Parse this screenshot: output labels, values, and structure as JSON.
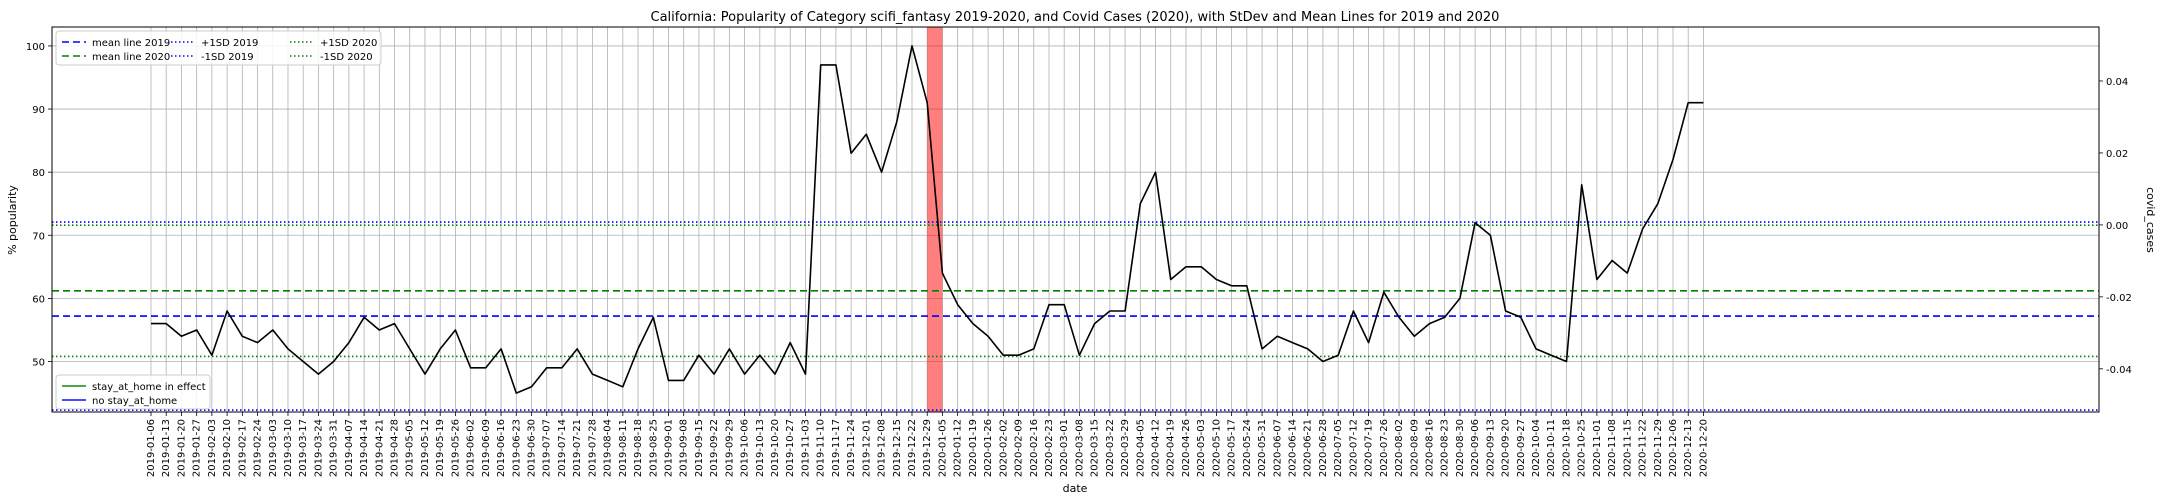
{
  "chart_data": {
    "type": "line",
    "title": "California: Popularity of Category scifi_fantasy 2019-2020, and Covid Cases (2020), with StDev and Mean Lines for 2019 and 2020",
    "xlabel": "date",
    "ylabel": "% popularity",
    "y2label": "covid_cases",
    "ylim": [
      42,
      103
    ],
    "y2lim": [
      -0.052,
      0.055
    ],
    "yticks": [
      50,
      60,
      70,
      80,
      90,
      100
    ],
    "y2ticks": [
      "-0.04",
      "-0.02",
      "0.00",
      "0.02",
      "0.04"
    ],
    "y2tick_values": [
      -0.04,
      -0.02,
      0.0,
      0.02,
      0.04
    ],
    "grid": true,
    "x": [
      "2019-01-06",
      "2019-01-13",
      "2019-01-20",
      "2019-01-27",
      "2019-02-03",
      "2019-02-10",
      "2019-02-17",
      "2019-02-24",
      "2019-03-03",
      "2019-03-10",
      "2019-03-17",
      "2019-03-24",
      "2019-03-31",
      "2019-04-07",
      "2019-04-14",
      "2019-04-21",
      "2019-04-28",
      "2019-05-05",
      "2019-05-12",
      "2019-05-19",
      "2019-05-26",
      "2019-06-02",
      "2019-06-09",
      "2019-06-16",
      "2019-06-23",
      "2019-06-30",
      "2019-07-07",
      "2019-07-14",
      "2019-07-21",
      "2019-07-28",
      "2019-08-04",
      "2019-08-11",
      "2019-08-18",
      "2019-08-25",
      "2019-09-01",
      "2019-09-08",
      "2019-09-15",
      "2019-09-22",
      "2019-09-29",
      "2019-10-06",
      "2019-10-13",
      "2019-10-20",
      "2019-10-27",
      "2019-11-03",
      "2019-11-10",
      "2019-11-17",
      "2019-11-24",
      "2019-12-01",
      "2019-12-08",
      "2019-12-15",
      "2019-12-22",
      "2019-12-29",
      "2020-01-05",
      "2020-01-12",
      "2020-01-19",
      "2020-01-26",
      "2020-02-02",
      "2020-02-09",
      "2020-02-16",
      "2020-02-23",
      "2020-03-01",
      "2020-03-08",
      "2020-03-15",
      "2020-03-22",
      "2020-03-29",
      "2020-04-05",
      "2020-04-12",
      "2020-04-19",
      "2020-04-26",
      "2020-05-03",
      "2020-05-10",
      "2020-05-17",
      "2020-05-24",
      "2020-05-31",
      "2020-06-07",
      "2020-06-14",
      "2020-06-21",
      "2020-06-28",
      "2020-07-05",
      "2020-07-12",
      "2020-07-19",
      "2020-07-26",
      "2020-08-02",
      "2020-08-09",
      "2020-08-16",
      "2020-08-23",
      "2020-08-30",
      "2020-09-06",
      "2020-09-13",
      "2020-09-20",
      "2020-09-27",
      "2020-10-04",
      "2020-10-11",
      "2020-10-18",
      "2020-10-25",
      "2020-11-01",
      "2020-11-08",
      "2020-11-15",
      "2020-11-22",
      "2020-11-29",
      "2020-12-06",
      "2020-12-13",
      "2020-12-20"
    ],
    "series": [
      {
        "name": "popularity",
        "color": "#000000",
        "values": [
          56,
          56,
          54,
          55,
          51,
          58,
          54,
          53,
          55,
          52,
          50,
          48,
          50,
          53,
          57,
          55,
          56,
          52,
          48,
          52,
          55,
          49,
          49,
          52,
          45,
          46,
          49,
          49,
          52,
          48,
          47,
          46,
          52,
          57,
          47,
          47,
          51,
          48,
          52,
          48,
          51,
          48,
          53,
          48,
          97,
          97,
          83,
          86,
          80,
          88,
          100,
          91,
          64,
          59,
          56,
          54,
          51,
          51,
          52,
          59,
          59,
          51,
          56,
          58,
          58,
          75,
          80,
          63,
          65,
          65,
          63,
          62,
          62,
          52,
          54,
          53,
          52,
          50,
          51,
          58,
          53,
          61,
          57,
          54,
          56,
          57,
          60,
          72,
          70,
          58,
          57,
          52,
          51,
          50,
          78,
          63,
          66,
          64,
          71,
          75,
          82,
          91,
          91
        ]
      }
    ],
    "reference_lines": [
      {
        "name": "mean line 2019",
        "value": 57.2,
        "color": "#0000ff",
        "style": "dashed"
      },
      {
        "name": "mean line 2020",
        "value": 61.2,
        "color": "#008000",
        "style": "dashed"
      },
      {
        "name": "+1SD 2019",
        "value": 72.1,
        "color": "#0000ff",
        "style": "dotted"
      },
      {
        "name": "-1SD 2019",
        "value": 42.3,
        "color": "#0000ff",
        "style": "dotted"
      },
      {
        "name": "+1SD 2020",
        "value": 71.6,
        "color": "#008000",
        "style": "dotted"
      },
      {
        "name": "-1SD 2020",
        "value": 50.8,
        "color": "#008000",
        "style": "dotted"
      }
    ],
    "highlight_band": {
      "start": "2019-12-29",
      "end": "2020-01-05",
      "color": "#ff0000"
    },
    "legend_top": [
      "mean line 2019",
      "mean line 2020",
      "+1SD 2019",
      "-1SD 2019",
      "+1SD 2020",
      "-1SD 2020"
    ],
    "legend_bottom": [
      {
        "name": "stay_at_home in effect",
        "color": "#008000"
      },
      {
        "name": "no stay_at_home",
        "color": "#0000ff"
      }
    ],
    "legend_placement": [
      "upper-left",
      "lower-left"
    ]
  }
}
